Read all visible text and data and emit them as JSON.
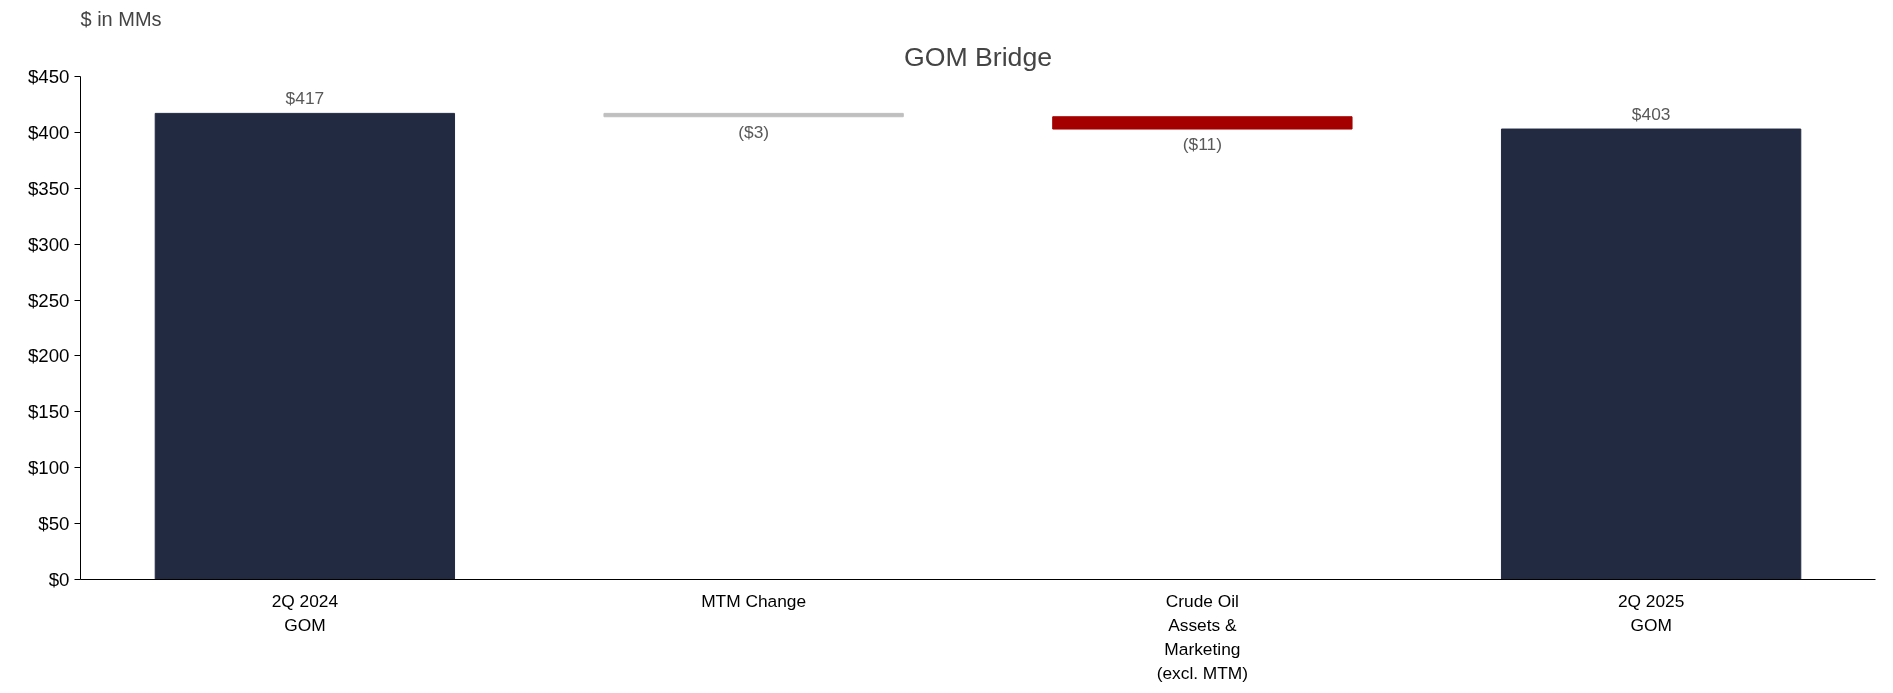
{
  "chart_data": {
    "type": "bar",
    "title": "GOM Bridge",
    "ylabel": "$ in MMs",
    "categories": [
      "2Q 2024\nGOM",
      "MTM Change",
      "Crude Oil\nAssets &\nMarketing\n(excl. MTM)",
      "2Q 2025\nGOM"
    ],
    "values": [
      417,
      -3,
      -11,
      403
    ],
    "base": [
      0,
      417,
      414,
      0
    ],
    "colors": [
      "#222a42",
      "#bfbfbf",
      "#a50000",
      "#222a42"
    ],
    "value_labels": [
      "$417",
      "($3)",
      "($11)",
      "$403"
    ],
    "ylim": [
      0,
      450
    ],
    "yticks": [
      {
        "value": 0,
        "label": "$0"
      },
      {
        "value": 50,
        "label": "$50"
      },
      {
        "value": 100,
        "label": "$100"
      },
      {
        "value": 150,
        "label": "$150"
      },
      {
        "value": 200,
        "label": "$200"
      },
      {
        "value": 250,
        "label": "$250"
      },
      {
        "value": 300,
        "label": "$300"
      },
      {
        "value": 350,
        "label": "$350"
      },
      {
        "value": 400,
        "label": "$400"
      },
      {
        "value": 450,
        "label": "$450"
      }
    ],
    "grid": false
  }
}
